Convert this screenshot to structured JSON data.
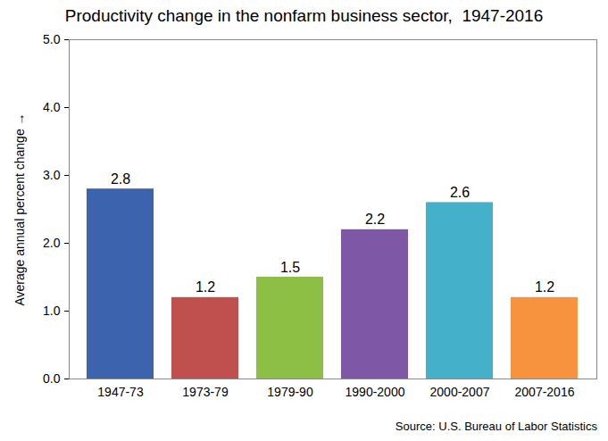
{
  "chart_data": {
    "type": "bar",
    "title": "Productivity change in the nonfarm business sector,  1947-2016",
    "y_label": "Average annual percent change",
    "source": "Source: U.S. Bureau of Labor Statistics",
    "categories": [
      "1947-73",
      "1973-79",
      "1979-90",
      "1990-2000",
      "2000-2007",
      "2007-2016"
    ],
    "values": [
      2.8,
      1.2,
      1.5,
      2.2,
      2.6,
      1.2
    ],
    "colors": [
      "#3b63ae",
      "#c0504d",
      "#8dbf44",
      "#7e57a6",
      "#45b0c9",
      "#f7923f"
    ],
    "ylim": [
      0,
      5
    ],
    "yticks": [
      {
        "value": 0,
        "label": "0.0"
      },
      {
        "value": 1,
        "label": "1.0"
      },
      {
        "value": 2,
        "label": "2.0"
      },
      {
        "value": 3,
        "label": "3.0"
      },
      {
        "value": 4,
        "label": "4.0"
      },
      {
        "value": 5,
        "label": "5.0"
      }
    ],
    "grid": false,
    "data_labels": true
  }
}
